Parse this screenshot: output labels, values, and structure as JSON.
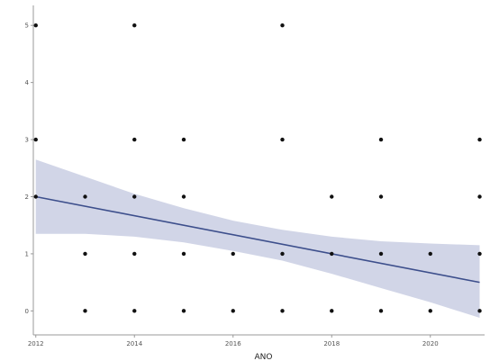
{
  "chart_data": {
    "type": "scatter",
    "title": "",
    "xlabel": "ANO",
    "ylabel": "",
    "xlim": [
      2011.95,
      2021.1
    ],
    "ylim": [
      -0.42,
      5.35
    ],
    "x_ticks": [
      2012,
      2014,
      2016,
      2018,
      2020
    ],
    "x_tick_labels": [
      "2012",
      "2014",
      "2016",
      "2018",
      "2020"
    ],
    "y_ticks": [
      0,
      1,
      2,
      3,
      4,
      5
    ],
    "y_tick_labels": [
      "0",
      "1",
      "2",
      "3",
      "4",
      "5"
    ],
    "grid": false,
    "legend": "none",
    "points": [
      {
        "x": 2012,
        "y": 5
      },
      {
        "x": 2012,
        "y": 3
      },
      {
        "x": 2012,
        "y": 2
      },
      {
        "x": 2013,
        "y": 2
      },
      {
        "x": 2013,
        "y": 1
      },
      {
        "x": 2013,
        "y": 0
      },
      {
        "x": 2014,
        "y": 5
      },
      {
        "x": 2014,
        "y": 3
      },
      {
        "x": 2014,
        "y": 2
      },
      {
        "x": 2014,
        "y": 1
      },
      {
        "x": 2014,
        "y": 0
      },
      {
        "x": 2015,
        "y": 3
      },
      {
        "x": 2015,
        "y": 2
      },
      {
        "x": 2015,
        "y": 1
      },
      {
        "x": 2015,
        "y": 0
      },
      {
        "x": 2016,
        "y": 1
      },
      {
        "x": 2016,
        "y": 0
      },
      {
        "x": 2017,
        "y": 5
      },
      {
        "x": 2017,
        "y": 3
      },
      {
        "x": 2017,
        "y": 1
      },
      {
        "x": 2017,
        "y": 0
      },
      {
        "x": 2018,
        "y": 2
      },
      {
        "x": 2018,
        "y": 1
      },
      {
        "x": 2018,
        "y": 0
      },
      {
        "x": 2019,
        "y": 3
      },
      {
        "x": 2019,
        "y": 2
      },
      {
        "x": 2019,
        "y": 1
      },
      {
        "x": 2019,
        "y": 0
      },
      {
        "x": 2020,
        "y": 1
      },
      {
        "x": 2020,
        "y": 0
      },
      {
        "x": 2021,
        "y": 3
      },
      {
        "x": 2021,
        "y": 2
      },
      {
        "x": 2021,
        "y": 1
      },
      {
        "x": 2021,
        "y": 0
      }
    ],
    "trend_line": {
      "x": [
        2012,
        2021
      ],
      "y": [
        2.0,
        0.5
      ]
    },
    "confidence_band": {
      "x": [
        2012,
        2013,
        2014,
        2015,
        2016,
        2017,
        2018,
        2019,
        2020,
        2021
      ],
      "upper": [
        2.65,
        2.35,
        2.05,
        1.8,
        1.58,
        1.42,
        1.3,
        1.22,
        1.18,
        1.15
      ],
      "lower": [
        1.35,
        1.35,
        1.3,
        1.2,
        1.05,
        0.88,
        0.65,
        0.4,
        0.15,
        -0.12
      ]
    },
    "colors": {
      "point": "#111111",
      "line": "#3d4f8c",
      "band": "#c9cee3",
      "axis": "#999999"
    }
  }
}
